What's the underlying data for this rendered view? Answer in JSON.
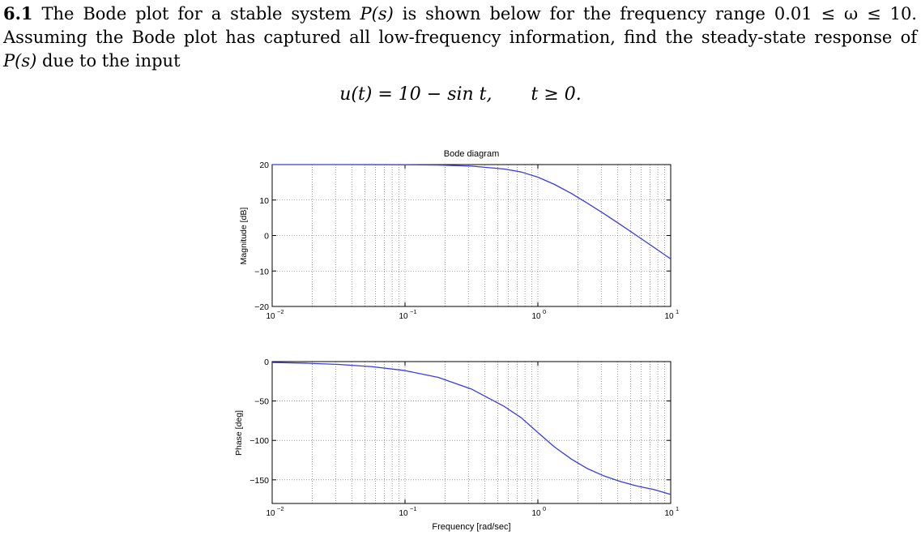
{
  "problem": {
    "number": "6.1",
    "text_part1": "The Bode plot for a stable system ",
    "P_s": "P(s)",
    "text_part2": " is shown below for the frequency range 0.01 ≤ ω ≤ 10. Assuming the Bode plot has captured all low-frequency information, find the steady-state response of ",
    "text_part3": " due to the input",
    "equation_lhs": "u(t) = 10 − sin t,",
    "equation_cond": "t ≥ 0."
  },
  "chart_data": [
    {
      "type": "line",
      "title": "Bode diagram",
      "xlabel": "",
      "ylabel": "Magnitude [dB]",
      "xscale": "log",
      "xlim": [
        0.01,
        10
      ],
      "ylim": [
        -20,
        20
      ],
      "yticks": [
        20,
        10,
        0,
        -10,
        -20
      ],
      "xticks": [
        0.01,
        0.1,
        1,
        10
      ],
      "xtick_labels": [
        {
          "base": "10",
          "exp": "-2"
        },
        {
          "base": "10",
          "exp": "-1"
        },
        {
          "base": "10",
          "exp": "0"
        },
        {
          "base": "10",
          "exp": "1"
        }
      ],
      "grid": true,
      "line_color": "#3b3bdc",
      "x": [
        0.01,
        0.0178,
        0.0316,
        0.0562,
        0.1,
        0.178,
        0.316,
        0.562,
        0.75,
        1,
        1.33,
        1.78,
        2.37,
        3.16,
        4.22,
        5.62,
        7.5,
        10
      ],
      "y": [
        20,
        20,
        20,
        19.99,
        19.96,
        19.87,
        19.58,
        18.75,
        17.9,
        16.45,
        14.43,
        11.89,
        9.08,
        6.1,
        2.99,
        -0.17,
        -3.37,
        -6.6
      ]
    },
    {
      "type": "line",
      "title": "",
      "xlabel": "Frequency [rad/sec]",
      "ylabel": "Phase [deg]",
      "xscale": "log",
      "xlim": [
        0.01,
        10
      ],
      "ylim": [
        -180,
        0
      ],
      "yticks": [
        0,
        -50,
        -100,
        -150
      ],
      "xticks": [
        0.01,
        0.1,
        1,
        10
      ],
      "xtick_labels": [
        {
          "base": "10",
          "exp": "-2"
        },
        {
          "base": "10",
          "exp": "-1"
        },
        {
          "base": "10",
          "exp": "0"
        },
        {
          "base": "10",
          "exp": "1"
        }
      ],
      "grid": true,
      "line_color": "#3b3bdc",
      "x": [
        0.01,
        0.0178,
        0.0316,
        0.0562,
        0.1,
        0.178,
        0.316,
        0.562,
        0.75,
        1,
        1.33,
        1.78,
        2.37,
        3.16,
        4.22,
        5.62,
        7.5,
        10
      ],
      "y": [
        -1.1,
        -2.0,
        -3.6,
        -6.4,
        -11.4,
        -20.1,
        -34.8,
        -57.2,
        -71.3,
        -90,
        -108.1,
        -123.5,
        -135.9,
        -145.2,
        -152.4,
        -158.0,
        -162.4,
        -168.6
      ]
    }
  ]
}
